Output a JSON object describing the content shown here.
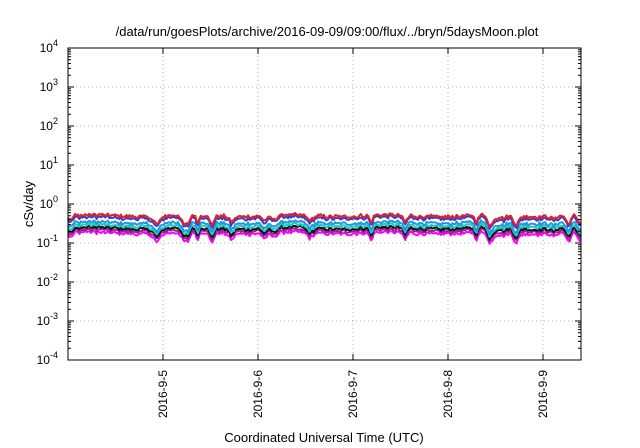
{
  "chart_data": {
    "type": "line",
    "title": "/data/run/goesPlots/archive/2016-09-09/09:00/flux/../bryn/5daysMoon.plot",
    "xlabel": "Coordinated Universal Time (UTC)",
    "ylabel": "cSv/day",
    "yscale": "log",
    "ylim_exponents": [
      -4,
      4
    ],
    "y_tick_exponents": [
      -4,
      -3,
      -2,
      -1,
      0,
      1,
      2,
      3,
      4
    ],
    "y_tick_base": "10",
    "xlim_days": [
      "2016-09-04",
      "2016-09-09"
    ],
    "x_ticks": [
      "2016-9-5",
      "2016-9-6",
      "2016-9-7",
      "2016-9-8",
      "2016-9-9"
    ],
    "grid": true,
    "legend": "none",
    "series": [
      {
        "color": "#e0202a",
        "approx_value": 0.5
      },
      {
        "color": "#3a3ad0",
        "approx_value": 0.44
      },
      {
        "color": "#1e9ad8",
        "approx_value": 0.33
      },
      {
        "color": "#20c8c8",
        "approx_value": 0.28
      },
      {
        "color": "#111111",
        "approx_value": 0.24
      },
      {
        "color": "#8a2a8a",
        "approx_value": 0.21
      },
      {
        "color": "#ff00ff",
        "approx_value": 0.18
      }
    ]
  }
}
